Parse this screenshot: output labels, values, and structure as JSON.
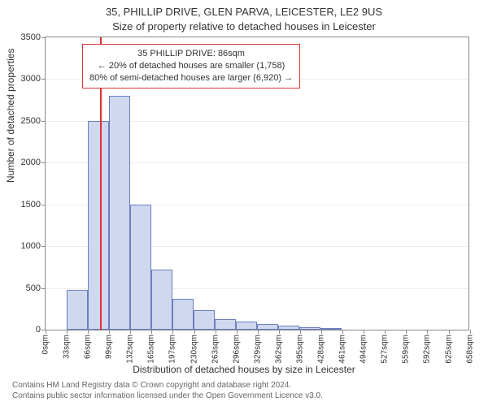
{
  "title": "35, PHILLIP DRIVE, GLEN PARVA, LEICESTER, LE2 9US",
  "subtitle": "Size of property relative to detached houses in Leicester",
  "yaxis_label": "Number of detached properties",
  "xaxis_label": "Distribution of detached houses by size in Leicester",
  "chart": {
    "type": "histogram",
    "background_color": "#ffffff",
    "plot_border_color": "#888888",
    "grid_color": "#eeeeee",
    "bar_fill": "#cfd8ef",
    "bar_border": "#6b7fbf",
    "marker_color": "#e03030",
    "anno_border": "#dd3333",
    "label_fontsize": 12,
    "tick_fontsize": 11,
    "xtick_fontsize": 10,
    "ylim": [
      0,
      3500
    ],
    "yticks": [
      0,
      500,
      1000,
      1500,
      2000,
      2500,
      3000,
      3500
    ],
    "xticks": [
      "0sqm",
      "33sqm",
      "66sqm",
      "99sqm",
      "132sqm",
      "165sqm",
      "197sqm",
      "230sqm",
      "263sqm",
      "296sqm",
      "329sqm",
      "362sqm",
      "395sqm",
      "428sqm",
      "461sqm",
      "494sqm",
      "527sqm",
      "559sqm",
      "592sqm",
      "625sqm",
      "658sqm"
    ],
    "xtick_step_sqm": 33,
    "xlim_sqm": [
      0,
      658
    ],
    "bar_width_sqm": 33,
    "bars_start_sqm": [
      33,
      66,
      99,
      132,
      165,
      197,
      230,
      263,
      296,
      329,
      362,
      395,
      428
    ],
    "bars_values": [
      480,
      2500,
      2800,
      1500,
      720,
      370,
      230,
      130,
      100,
      70,
      50,
      30,
      20
    ],
    "marker_sqm": 86
  },
  "anno": {
    "line1": "35 PHILLIP DRIVE: 86sqm",
    "line2": "← 20% of detached houses are smaller (1,758)",
    "line3": "80% of semi-detached houses are larger (6,920) →"
  },
  "footer": {
    "line1": "Contains HM Land Registry data © Crown copyright and database right 2024.",
    "line2": "Contains public sector information licensed under the Open Government Licence v3.0."
  }
}
